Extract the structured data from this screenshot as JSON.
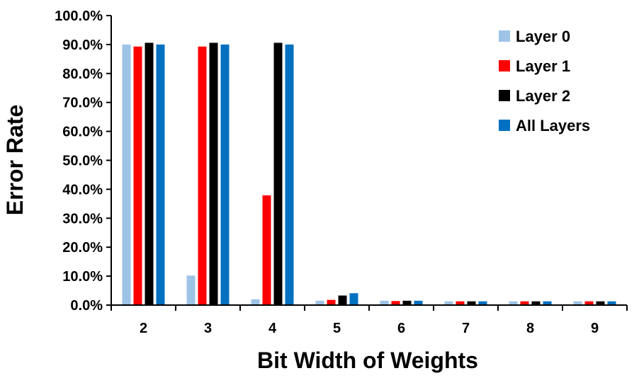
{
  "chart_data": {
    "type": "bar",
    "title": "",
    "xlabel": "Bit Width of Weights",
    "ylabel": "Error Rate",
    "categories": [
      "2",
      "3",
      "4",
      "5",
      "6",
      "7",
      "8",
      "9"
    ],
    "yticks": [
      "0.0%",
      "10.0%",
      "20.0%",
      "30.0%",
      "40.0%",
      "50.0%",
      "60.0%",
      "70.0%",
      "80.0%",
      "90.0%",
      "100.0%"
    ],
    "ylim": [
      0,
      100
    ],
    "grid": false,
    "legend_position": "top-right",
    "series": [
      {
        "name": "Layer 0",
        "color": "#9DC3E6",
        "values": [
          90.0,
          10.2,
          2.0,
          1.5,
          1.5,
          1.3,
          1.3,
          1.3
        ]
      },
      {
        "name": "Layer 1",
        "color": "#FF0000",
        "values": [
          89.3,
          89.3,
          37.9,
          1.8,
          1.4,
          1.3,
          1.3,
          1.3
        ]
      },
      {
        "name": "Layer 2",
        "color": "#000000",
        "values": [
          90.6,
          90.6,
          90.6,
          3.3,
          1.5,
          1.3,
          1.3,
          1.3
        ]
      },
      {
        "name": "All Layers",
        "color": "#0070C0",
        "values": [
          90.0,
          90.0,
          90.0,
          4.1,
          1.5,
          1.3,
          1.3,
          1.3
        ]
      }
    ]
  }
}
